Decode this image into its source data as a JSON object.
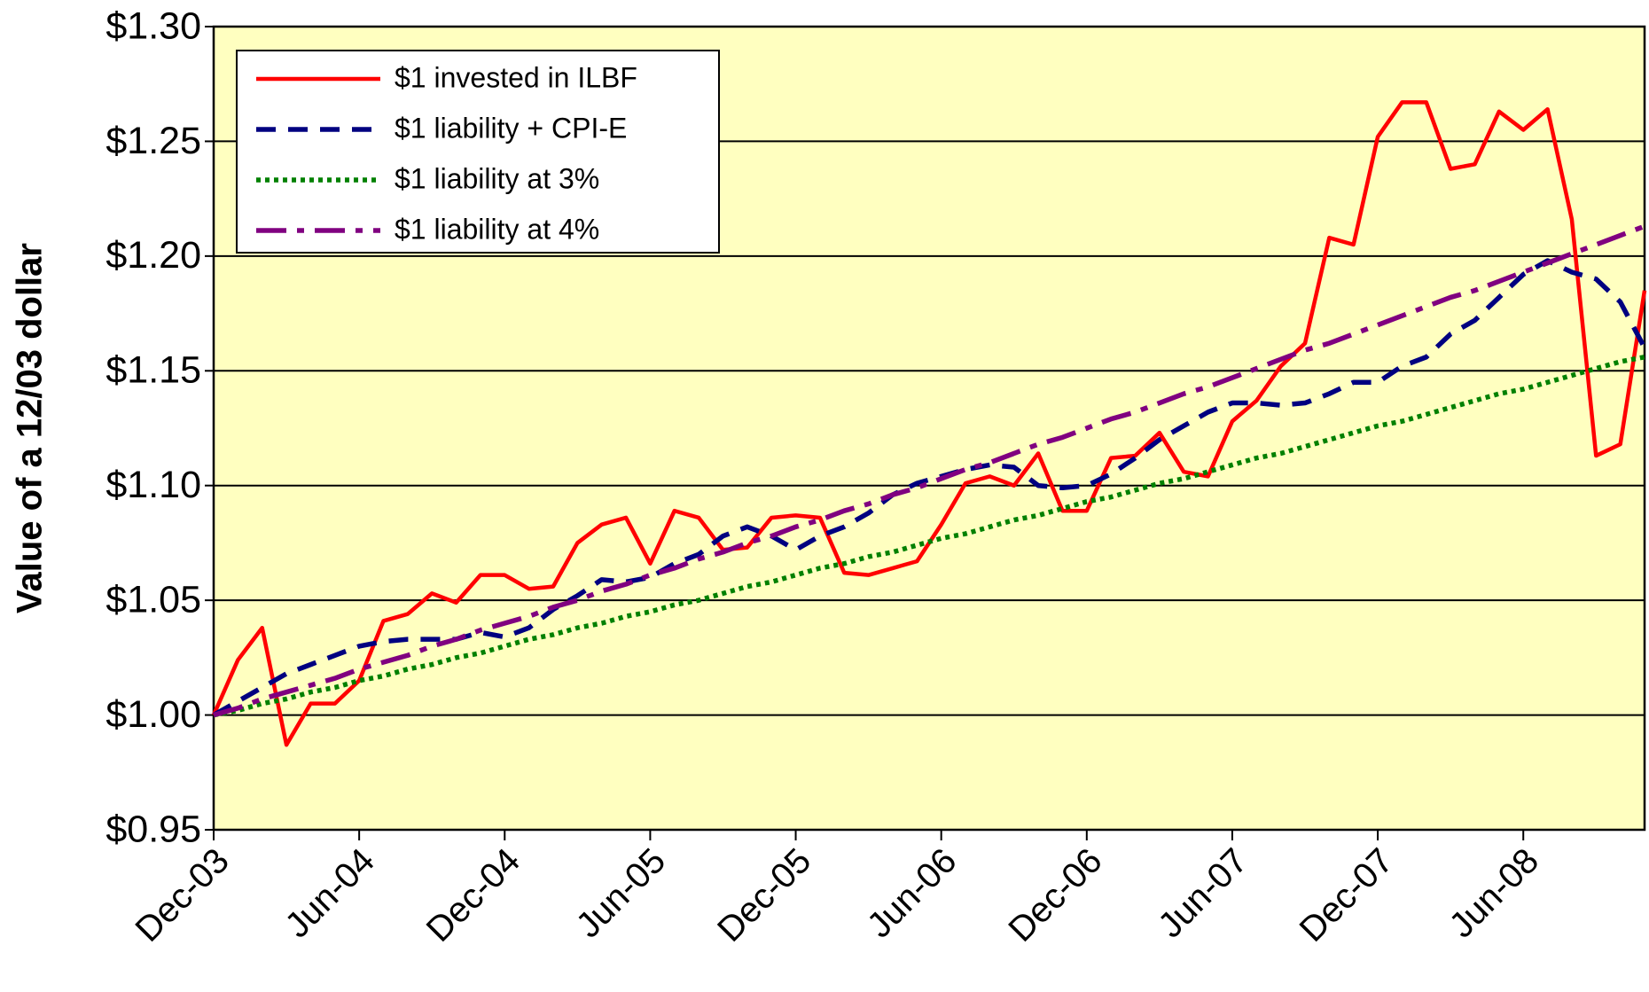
{
  "chart_data": {
    "type": "line",
    "y_label": "Value of  a 12/03 dollar",
    "categories": [
      "Dec-03",
      null,
      null,
      null,
      null,
      null,
      "Jun-04",
      null,
      null,
      null,
      null,
      null,
      "Dec-04",
      null,
      null,
      null,
      null,
      null,
      "Jun-05",
      null,
      null,
      null,
      null,
      null,
      "Dec-05",
      null,
      null,
      null,
      null,
      null,
      "Jun-06",
      null,
      null,
      null,
      null,
      null,
      "Dec-06",
      null,
      null,
      null,
      null,
      null,
      "Jun-07",
      null,
      null,
      null,
      null,
      null,
      "Dec-07",
      null,
      null,
      null,
      null,
      null,
      "Jun-08",
      null,
      null,
      null,
      null,
      null
    ],
    "series": [
      {
        "name": "$1 invested in ILBF",
        "color": "#ff0000",
        "style": "solid",
        "values": [
          1.0,
          1.024,
          1.038,
          0.987,
          1.005,
          1.005,
          1.015,
          1.041,
          1.044,
          1.053,
          1.049,
          1.061,
          1.061,
          1.055,
          1.056,
          1.075,
          1.083,
          1.086,
          1.066,
          1.089,
          1.086,
          1.072,
          1.073,
          1.086,
          1.087,
          1.086,
          1.062,
          1.061,
          1.064,
          1.067,
          1.083,
          1.101,
          1.104,
          1.1,
          1.114,
          1.089,
          1.089,
          1.112,
          1.113,
          1.123,
          1.106,
          1.104,
          1.128,
          1.137,
          1.152,
          1.162,
          1.208,
          1.205,
          1.252,
          1.267,
          1.267,
          1.238,
          1.24,
          1.263,
          1.255,
          1.264,
          1.216,
          1.113,
          1.118,
          1.185
        ]
      },
      {
        "name": "$1 liability + CPI-E",
        "color": "#000080",
        "style": "dashed",
        "values": [
          1.0,
          1.006,
          1.012,
          1.018,
          1.022,
          1.026,
          1.03,
          1.032,
          1.033,
          1.033,
          1.033,
          1.036,
          1.034,
          1.038,
          1.046,
          1.052,
          1.059,
          1.058,
          1.06,
          1.066,
          1.07,
          1.078,
          1.082,
          1.078,
          1.072,
          1.078,
          1.082,
          1.088,
          1.096,
          1.101,
          1.104,
          1.107,
          1.109,
          1.108,
          1.1,
          1.099,
          1.1,
          1.105,
          1.112,
          1.12,
          1.126,
          1.132,
          1.136,
          1.136,
          1.135,
          1.136,
          1.14,
          1.145,
          1.145,
          1.152,
          1.156,
          1.166,
          1.172,
          1.182,
          1.192,
          1.198,
          1.193,
          1.19,
          1.18,
          1.16
        ]
      },
      {
        "name": "$1 liability at 3%",
        "color": "#008000",
        "style": "dotted",
        "values": [
          1.0,
          1.002,
          1.005,
          1.007,
          1.01,
          1.012,
          1.015,
          1.017,
          1.02,
          1.022,
          1.025,
          1.027,
          1.03,
          1.033,
          1.035,
          1.038,
          1.04,
          1.043,
          1.045,
          1.048,
          1.05,
          1.053,
          1.056,
          1.058,
          1.061,
          1.064,
          1.066,
          1.069,
          1.071,
          1.074,
          1.077,
          1.079,
          1.082,
          1.085,
          1.087,
          1.09,
          1.093,
          1.095,
          1.098,
          1.101,
          1.103,
          1.106,
          1.109,
          1.112,
          1.114,
          1.117,
          1.12,
          1.123,
          1.126,
          1.128,
          1.131,
          1.134,
          1.137,
          1.14,
          1.142,
          1.145,
          1.148,
          1.151,
          1.154,
          1.156
        ]
      },
      {
        "name": "$1 liability at 4%",
        "color": "#800080",
        "style": "dashdot",
        "values": [
          1.0,
          1.003,
          1.007,
          1.01,
          1.013,
          1.016,
          1.02,
          1.023,
          1.026,
          1.03,
          1.033,
          1.037,
          1.04,
          1.043,
          1.047,
          1.05,
          1.054,
          1.057,
          1.061,
          1.064,
          1.068,
          1.071,
          1.075,
          1.078,
          1.082,
          1.085,
          1.089,
          1.092,
          1.096,
          1.099,
          1.103,
          1.107,
          1.11,
          1.114,
          1.118,
          1.121,
          1.125,
          1.129,
          1.132,
          1.136,
          1.14,
          1.143,
          1.147,
          1.151,
          1.155,
          1.159,
          1.162,
          1.166,
          1.17,
          1.174,
          1.178,
          1.182,
          1.185,
          1.189,
          1.193,
          1.197,
          1.201,
          1.205,
          1.209,
          1.213
        ]
      }
    ],
    "ylim": [
      0.95,
      1.3
    ],
    "yticks": [
      {
        "value": 0.95,
        "label": "$0.95"
      },
      {
        "value": 1.0,
        "label": "$1.00"
      },
      {
        "value": 1.05,
        "label": "$1.05"
      },
      {
        "value": 1.1,
        "label": "$1.10"
      },
      {
        "value": 1.15,
        "label": "$1.15"
      },
      {
        "value": 1.2,
        "label": "$1.20"
      },
      {
        "value": 1.25,
        "label": "$1.25"
      },
      {
        "value": 1.3,
        "label": "$1.30"
      }
    ],
    "grid": true,
    "legend": "upper-left",
    "plot_background": "#ffffc0"
  }
}
